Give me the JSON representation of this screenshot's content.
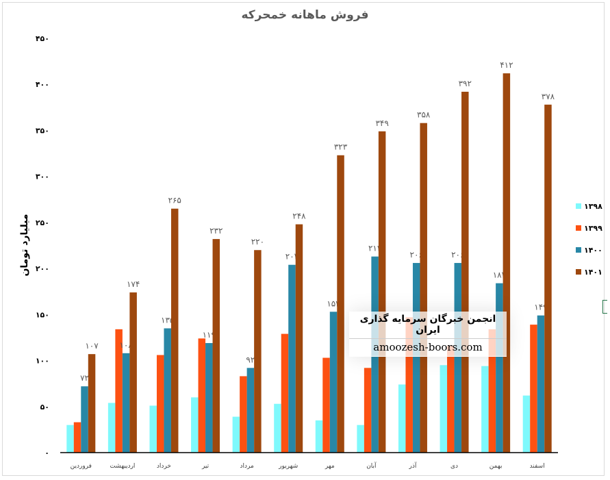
{
  "chart_data": {
    "type": "bar",
    "title": "فروش ماهانه خمحرکه",
    "xlabel": "",
    "ylabel": "میلیارد تومان",
    "ylim": [
      0,
      450
    ],
    "yticks": [
      0,
      50,
      100,
      150,
      200,
      250,
      300,
      350,
      400,
      450
    ],
    "grid": false,
    "legend_position": "right",
    "categories": [
      "فروردین",
      "اردیبهشت",
      "خرداد",
      "تیر",
      "مرداد",
      "شهریور",
      "مهر",
      "آبان",
      "آذر",
      "دی",
      "بهمن",
      "اسفند"
    ],
    "series": [
      {
        "name": "۱۳۹۸",
        "color": "#7ff9fc",
        "show_labels": false,
        "values": [
          30,
          54,
          51,
          60,
          39,
          53,
          35,
          30,
          74,
          95,
          94,
          62
        ]
      },
      {
        "name": "۱۳۹۹",
        "color": "#fd5112",
        "show_labels": false,
        "values": [
          33,
          134,
          106,
          124,
          83,
          129,
          103,
          92,
          147,
          116,
          134,
          139
        ]
      },
      {
        "name": "۱۴۰۰",
        "color": "#2887a6",
        "show_labels": true,
        "values": [
          72,
          108,
          135,
          119,
          92,
          204,
          153,
          213,
          206,
          206,
          184,
          149
        ]
      },
      {
        "name": "۱۴۰۱",
        "color": "#9e480e",
        "show_labels": true,
        "values": [
          107,
          174,
          265,
          232,
          220,
          248,
          323,
          349,
          358,
          392,
          412,
          378
        ]
      }
    ]
  },
  "watermark": {
    "line1": "انجمن خبرگان سرمایه گذاری ایران",
    "line2": "amoozesh-boors.com"
  }
}
